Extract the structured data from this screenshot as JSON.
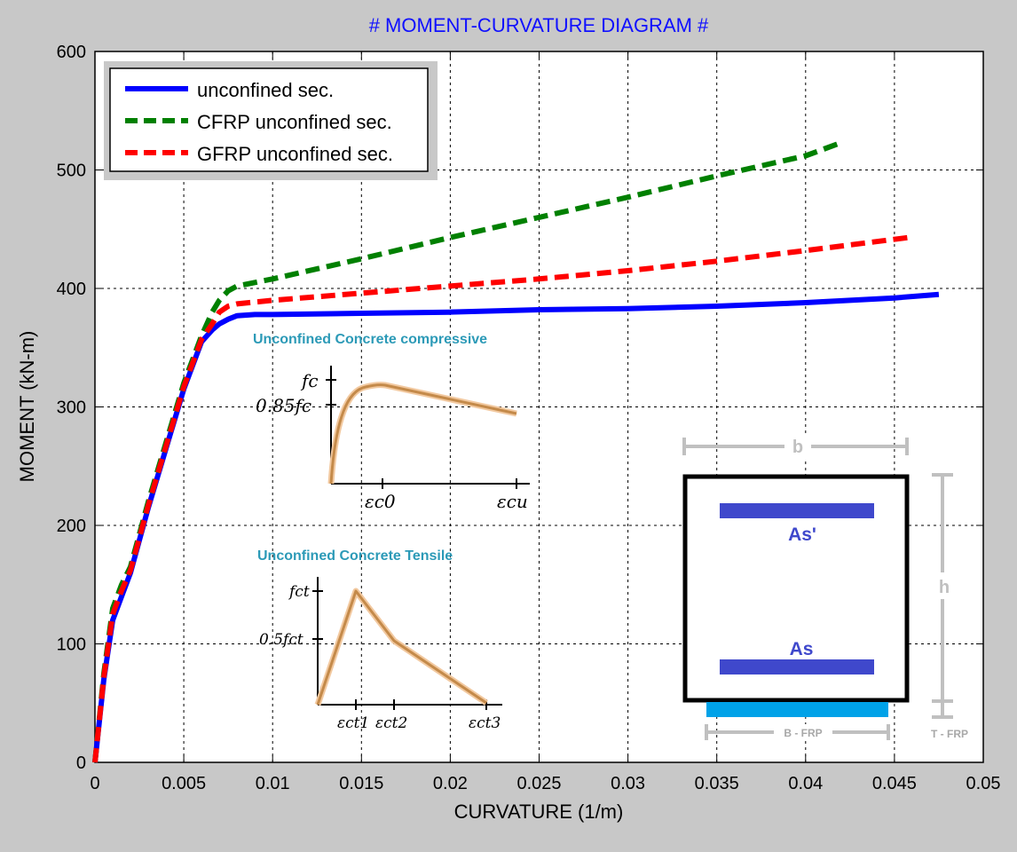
{
  "chart_data": {
    "type": "line",
    "title": "# MOMENT-CURVATURE DIAGRAM #",
    "xlabel": "CURVATURE (1/m)",
    "ylabel": "MOMENT (kN-m)",
    "xlim": [
      0,
      0.05
    ],
    "ylim": [
      0,
      600
    ],
    "xticks": [
      0,
      0.005,
      0.01,
      0.015,
      0.02,
      0.025,
      0.03,
      0.035,
      0.04,
      0.045,
      0.05
    ],
    "xtick_labels": [
      "0",
      "0.005",
      "0.01",
      "0.015",
      "0.02",
      "0.025",
      "0.03",
      "0.035",
      "0.04",
      "0.045",
      "0.05"
    ],
    "yticks": [
      0,
      100,
      200,
      300,
      400,
      500,
      600
    ],
    "ytick_labels": [
      "0",
      "100",
      "200",
      "300",
      "400",
      "500",
      "600"
    ],
    "grid": true,
    "legend_position": "top-left",
    "series": [
      {
        "name": "unconfined sec.",
        "color": "#0000ff",
        "style": "solid",
        "x": [
          0,
          0.0005,
          0.001,
          0.0015,
          0.002,
          0.003,
          0.004,
          0.005,
          0.006,
          0.0066,
          0.007,
          0.0075,
          0.008,
          0.009,
          0.01,
          0.015,
          0.02,
          0.025,
          0.03,
          0.035,
          0.04,
          0.045,
          0.0475
        ],
        "y": [
          0,
          70,
          120,
          140,
          160,
          215,
          265,
          315,
          355,
          365,
          370,
          374,
          377,
          378,
          378,
          379,
          380,
          382,
          383,
          385,
          388,
          392,
          395
        ]
      },
      {
        "name": "CFRP unconfined sec.",
        "color": "#008000",
        "style": "dashed",
        "x": [
          0,
          0.0005,
          0.001,
          0.0015,
          0.002,
          0.003,
          0.004,
          0.005,
          0.006,
          0.0066,
          0.007,
          0.0075,
          0.008,
          0.01,
          0.015,
          0.02,
          0.025,
          0.03,
          0.035,
          0.04,
          0.042
        ],
        "y": [
          0,
          75,
          130,
          150,
          165,
          220,
          270,
          320,
          360,
          380,
          390,
          398,
          402,
          408,
          425,
          443,
          460,
          477,
          495,
          512,
          523
        ]
      },
      {
        "name": "GFRP unconfined sec.",
        "color": "#ff0000",
        "style": "dashed",
        "x": [
          0,
          0.0005,
          0.001,
          0.0015,
          0.002,
          0.003,
          0.004,
          0.005,
          0.006,
          0.0066,
          0.007,
          0.0075,
          0.008,
          0.01,
          0.015,
          0.02,
          0.025,
          0.03,
          0.035,
          0.04,
          0.0458
        ],
        "y": [
          0,
          72,
          125,
          145,
          162,
          217,
          267,
          317,
          357,
          370,
          380,
          385,
          387,
          390,
          396,
          402,
          408,
          415,
          423,
          432,
          443
        ]
      }
    ]
  },
  "inset_compressive": {
    "title": "Unconfined Concrete compressive",
    "y_label_top": "fc",
    "y_label_bottom": "0.85fc",
    "x_label_left": "εc0",
    "x_label_right": "εcu",
    "curve_color": "#c48a4a"
  },
  "inset_tensile": {
    "title": "Unconfined Concrete Tensile",
    "y_label_top": "fct",
    "y_label_bottom": "0.5fct",
    "x_label_1": "εct1",
    "x_label_2": "εct2",
    "x_label_3": "εct3",
    "curve_color": "#c48a4a"
  },
  "section": {
    "width_label": "b",
    "height_label": "h",
    "top_bar_label": "As'",
    "bottom_bar_label": "As",
    "frp_width_label": "B - FRP",
    "frp_thickness_label": "T - FRP",
    "bar_color": "#3f48cc",
    "frp_color": "#00a2e8",
    "dimension_color": "#c0c0c0"
  }
}
